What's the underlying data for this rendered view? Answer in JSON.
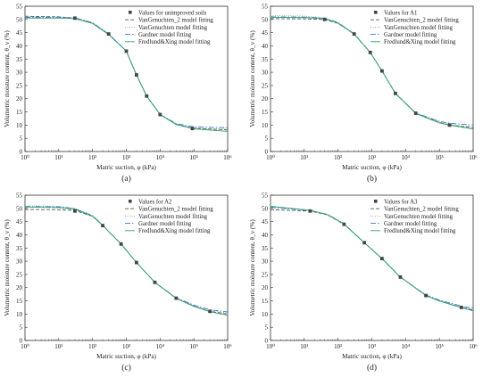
{
  "chart_data": [
    {
      "type": "line",
      "panel_label": "(a)",
      "xlabel": "Matric suction, φ (kPa)",
      "ylabel": "Volumetric moisture content, θ_v (%)",
      "xscale": "log",
      "xlim": [
        1,
        1000000
      ],
      "ylim": [
        0,
        55
      ],
      "x_ticks": [
        1,
        10,
        100,
        1000,
        10000,
        100000,
        1000000
      ],
      "y_ticks": [
        0,
        5,
        10,
        15,
        20,
        25,
        30,
        35,
        40,
        45,
        50,
        55
      ],
      "legend_position": "top-right",
      "grid": false,
      "series": [
        {
          "name": "Values for unimproved soils",
          "kind": "points",
          "x": [
            30,
            300,
            1000,
            2000,
            4000,
            10000,
            90000
          ],
          "y": [
            50.5,
            44.5,
            38,
            29,
            21,
            14,
            8.7
          ]
        },
        {
          "name": "VanGenuchten_2 model fitting",
          "kind": "line",
          "color": "#555555",
          "dash": "4,2",
          "x": [
            1,
            10,
            30,
            100,
            300,
            1000,
            2000,
            4000,
            10000,
            30000,
            100000,
            1000000
          ],
          "y": [
            51.2,
            51,
            50.5,
            48.5,
            44.5,
            38,
            29,
            21,
            14,
            10.3,
            8.8,
            8.2
          ]
        },
        {
          "name": "VanGenuchten model fitting",
          "kind": "line",
          "color": "#9aa3ad",
          "dash": "1,1.5",
          "x": [
            1,
            10,
            30,
            100,
            300,
            1000,
            2000,
            4000,
            10000,
            30000,
            100000,
            1000000
          ],
          "y": [
            51,
            50.9,
            50.6,
            48.6,
            44.6,
            38,
            29,
            21,
            14,
            10.4,
            8.9,
            8.4
          ]
        },
        {
          "name": "Gardner model fitting",
          "kind": "line",
          "color": "#3a78d0",
          "dash": "6,2,1.5,2",
          "x": [
            1,
            10,
            30,
            100,
            300,
            1000,
            2000,
            4000,
            10000,
            30000,
            100000,
            1000000
          ],
          "y": [
            50.8,
            50.8,
            50.6,
            48.8,
            44.5,
            38,
            29,
            21,
            14,
            10.6,
            9.3,
            9
          ]
        },
        {
          "name": "Fredlund&Xing model fitting",
          "kind": "line",
          "color": "#2fa36b",
          "dash": "",
          "x": [
            1,
            10,
            30,
            100,
            300,
            1000,
            2000,
            4000,
            10000,
            30000,
            100000,
            1000000
          ],
          "y": [
            50.5,
            50.5,
            50.3,
            48.5,
            44.3,
            38,
            29,
            21,
            14,
            10.2,
            8.6,
            7.6
          ]
        }
      ]
    },
    {
      "type": "line",
      "panel_label": "(b)",
      "xlabel": "Matric suction, φ (kPa)",
      "ylabel": "Volumetric moisture content, θ_v (%)",
      "xscale": "log",
      "xlim": [
        1,
        1000000
      ],
      "ylim": [
        0,
        55
      ],
      "x_ticks": [
        1,
        10,
        100,
        1000,
        10000,
        100000,
        1000000
      ],
      "y_ticks": [
        0,
        5,
        10,
        15,
        20,
        25,
        30,
        35,
        40,
        45,
        50,
        55
      ],
      "legend_position": "top-right",
      "grid": false,
      "series": [
        {
          "name": "Values for A1",
          "kind": "points",
          "x": [
            40,
            300,
            900,
            2000,
            5000,
            20000,
            200000
          ],
          "y": [
            50,
            44.5,
            37.5,
            30.5,
            22,
            14.5,
            10
          ]
        },
        {
          "name": "VanGenuchten_2 model fitting",
          "kind": "line",
          "color": "#555555",
          "dash": "4,2",
          "x": [
            1,
            10,
            40,
            100,
            300,
            900,
            2000,
            5000,
            20000,
            100000,
            200000,
            1000000
          ],
          "y": [
            50.3,
            50.2,
            50,
            48.5,
            44.5,
            37.5,
            30.5,
            22,
            14.5,
            11,
            10,
            9
          ]
        },
        {
          "name": "VanGenuchten model fitting",
          "kind": "line",
          "color": "#9aa3ad",
          "dash": "1,1.5",
          "x": [
            1,
            10,
            40,
            100,
            300,
            900,
            2000,
            5000,
            20000,
            100000,
            200000,
            1000000
          ],
          "y": [
            51.5,
            51.3,
            50.6,
            48.8,
            44.6,
            37.5,
            30.5,
            22,
            14.5,
            11.2,
            10.3,
            9.3
          ]
        },
        {
          "name": "Gardner model fitting",
          "kind": "line",
          "color": "#3a78d0",
          "dash": "6,2,1.5,2",
          "x": [
            1,
            10,
            40,
            100,
            300,
            900,
            2000,
            5000,
            20000,
            100000,
            200000,
            1000000
          ],
          "y": [
            51,
            50.9,
            50.5,
            48.8,
            44.5,
            37.5,
            30.5,
            22,
            14.6,
            11.4,
            10.7,
            10
          ]
        },
        {
          "name": "Fredlund&Xing model fitting",
          "kind": "line",
          "color": "#2fa36b",
          "dash": "",
          "x": [
            1,
            10,
            40,
            100,
            300,
            900,
            2000,
            5000,
            20000,
            100000,
            200000,
            1000000
          ],
          "y": [
            50.8,
            50.7,
            50.3,
            48.6,
            44.4,
            37.5,
            30.5,
            22,
            14.4,
            10.8,
            10,
            8.5
          ]
        }
      ]
    },
    {
      "type": "line",
      "panel_label": "(c)",
      "xlabel": "Matric suction, φ (kPa)",
      "ylabel": "Volumetric moisture content, θ_v (%)",
      "xscale": "log",
      "xlim": [
        1,
        1000000
      ],
      "ylim": [
        0,
        55
      ],
      "x_ticks": [
        1,
        10,
        100,
        1000,
        10000,
        100000,
        1000000
      ],
      "y_ticks": [
        0,
        5,
        10,
        15,
        20,
        25,
        30,
        35,
        40,
        45,
        50,
        55
      ],
      "legend_position": "top-right",
      "grid": false,
      "series": [
        {
          "name": "Values for A2",
          "kind": "points",
          "x": [
            30,
            200,
            700,
            2000,
            7000,
            30000,
            300000
          ],
          "y": [
            49,
            43.5,
            36.5,
            29.5,
            22,
            16,
            11
          ]
        },
        {
          "name": "VanGenuchten_2 model fitting",
          "kind": "line",
          "color": "#555555",
          "dash": "4,2",
          "x": [
            1,
            10,
            30,
            100,
            200,
            700,
            2000,
            7000,
            30000,
            100000,
            300000,
            1000000
          ],
          "y": [
            49.6,
            49.5,
            49.2,
            47,
            43.5,
            36.5,
            29.5,
            22,
            16,
            13,
            11,
            10
          ]
        },
        {
          "name": "VanGenuchten model fitting",
          "kind": "line",
          "color": "#9aa3ad",
          "dash": "1,1.5",
          "x": [
            1,
            10,
            30,
            100,
            200,
            700,
            2000,
            7000,
            30000,
            100000,
            300000,
            1000000
          ],
          "y": [
            51,
            50.8,
            50,
            47.2,
            43.6,
            36.5,
            29.5,
            22,
            16,
            13.2,
            11.3,
            10.3
          ]
        },
        {
          "name": "Gardner model fitting",
          "kind": "line",
          "color": "#3a78d0",
          "dash": "6,2,1.5,2",
          "x": [
            1,
            10,
            30,
            100,
            200,
            700,
            2000,
            7000,
            30000,
            100000,
            300000,
            1000000
          ],
          "y": [
            50.7,
            50.6,
            49.9,
            47.3,
            43.6,
            36.5,
            29.5,
            22,
            16.1,
            13.4,
            11.6,
            10.8
          ]
        },
        {
          "name": "Fredlund&Xing model fitting",
          "kind": "line",
          "color": "#2fa36b",
          "dash": "",
          "x": [
            1,
            10,
            30,
            100,
            200,
            700,
            2000,
            7000,
            30000,
            100000,
            300000,
            1000000
          ],
          "y": [
            50.5,
            50.3,
            49.7,
            47.1,
            43.5,
            36.5,
            29.5,
            22,
            15.9,
            12.9,
            10.9,
            9.5
          ]
        }
      ]
    },
    {
      "type": "line",
      "panel_label": "(d)",
      "xlabel": "Matric suction, φ (kPa)",
      "ylabel": "Volumetric moisture content, θ_v (%)",
      "xscale": "log",
      "xlim": [
        1,
        1000000
      ],
      "ylim": [
        0,
        55
      ],
      "x_ticks": [
        1,
        10,
        100,
        1000,
        10000,
        100000,
        1000000
      ],
      "y_ticks": [
        0,
        5,
        10,
        15,
        20,
        25,
        30,
        35,
        40,
        45,
        50,
        55
      ],
      "legend_position": "top-right",
      "grid": false,
      "series": [
        {
          "name": "Values for A3",
          "kind": "points",
          "x": [
            15,
            150,
            600,
            2000,
            7000,
            40000,
            450000
          ],
          "y": [
            49,
            44,
            37,
            31,
            24,
            17,
            12.5
          ]
        },
        {
          "name": "VanGenuchten_2 model fitting",
          "kind": "line",
          "color": "#555555",
          "dash": "4,2",
          "x": [
            1,
            15,
            50,
            150,
            600,
            2000,
            7000,
            40000,
            100000,
            450000,
            1000000
          ],
          "y": [
            49.5,
            49,
            47.5,
            44,
            37,
            31,
            24,
            17,
            15,
            12.5,
            11.5
          ]
        },
        {
          "name": "VanGenuchten model fitting",
          "kind": "line",
          "color": "#9aa3ad",
          "dash": "1,1.5",
          "x": [
            1,
            15,
            50,
            150,
            600,
            2000,
            7000,
            40000,
            100000,
            450000,
            1000000
          ],
          "y": [
            50.6,
            49.2,
            47.6,
            44.2,
            37,
            31,
            24,
            17.1,
            15.1,
            12.7,
            11.8
          ]
        },
        {
          "name": "Gardner model fitting",
          "kind": "line",
          "color": "#3a78d0",
          "dash": "6,2,1.5,2",
          "x": [
            1,
            15,
            50,
            150,
            600,
            2000,
            7000,
            40000,
            100000,
            450000,
            1000000
          ],
          "y": [
            50.4,
            49.2,
            47.7,
            44.2,
            37,
            31,
            24,
            17.2,
            15.3,
            13,
            12.2
          ]
        },
        {
          "name": "Fredlund&Xing model fitting",
          "kind": "line",
          "color": "#2fa36b",
          "dash": "",
          "x": [
            1,
            15,
            50,
            150,
            600,
            2000,
            7000,
            40000,
            100000,
            450000,
            1000000
          ],
          "y": [
            50.8,
            49.3,
            47.6,
            44.1,
            37,
            31,
            24,
            17,
            14.9,
            12.4,
            11.2
          ]
        }
      ]
    }
  ]
}
